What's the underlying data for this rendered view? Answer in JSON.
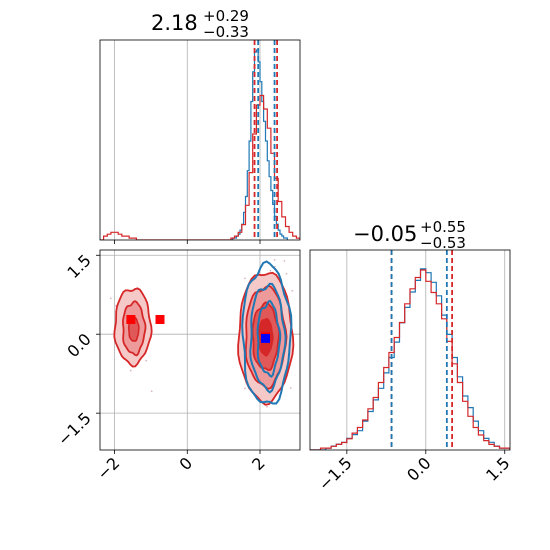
{
  "chart_data": {
    "type": "corner",
    "parameters": [
      {
        "title": {
          "value": "2.18",
          "upper": "+0.29",
          "lower": "−0.33"
        },
        "range": [
          -2.4,
          3.1
        ],
        "ticks": [
          -2,
          0,
          2
        ],
        "tick_labels": [
          "−2",
          "0",
          "2"
        ]
      },
      {
        "title": {
          "value": "−0.05",
          "upper": "+0.55",
          "lower": "−0.53"
        },
        "range": [
          -2.2,
          1.6
        ],
        "ticks": [
          -1.5,
          0.0,
          1.5
        ],
        "tick_labels": [
          "−1.5",
          "0.0",
          "1.5"
        ]
      }
    ],
    "series": [
      {
        "color": "#1f77b4",
        "quantiles_x": [
          1.95,
          2.4
        ],
        "quantiles_y": [
          -0.65,
          0.4
        ],
        "marker": {
          "x": 2.15,
          "y": -0.08,
          "color": "#0000ff"
        },
        "hist_x": {
          "edges_start": 1.2,
          "bin_width": 0.05,
          "counts": [
            0,
            1,
            1,
            2,
            3,
            5,
            8,
            14,
            22,
            35,
            50,
            70,
            85,
            95,
            96,
            90,
            80,
            70,
            60,
            50,
            40,
            32,
            25,
            18,
            12,
            8,
            5,
            3,
            2,
            1,
            1
          ]
        },
        "hist_y": {
          "edges_start": -2.2,
          "bin_width": 0.1,
          "counts": [
            0,
            0,
            0,
            1,
            2,
            3,
            4,
            6,
            8,
            10,
            15,
            20,
            26,
            32,
            40,
            48,
            56,
            66,
            74,
            82,
            88,
            94,
            92,
            87,
            80,
            70,
            60,
            48,
            38,
            28,
            22,
            15,
            10,
            6,
            4,
            2,
            1,
            1
          ]
        }
      },
      {
        "color": "#d62728",
        "quantiles_x": [
          1.85,
          2.47
        ],
        "quantiles_y": [
          -0.65,
          0.5
        ],
        "markers": [
          {
            "x": 2.15,
            "y": -0.05,
            "color": "#ff0000"
          },
          {
            "x": -1.55,
            "y": 0.28,
            "color": "#ff0000"
          },
          {
            "x": -0.75,
            "y": 0.28,
            "color": "#ff0000"
          }
        ],
        "hist_x": {
          "edges_start": -2.4,
          "bin_width": 0.1,
          "counts": [
            0,
            2,
            3,
            4,
            4,
            3,
            2,
            2,
            1,
            1,
            0,
            0,
            0,
            0,
            0,
            0,
            0,
            0,
            0,
            0,
            0,
            0,
            0,
            0,
            0,
            0,
            0,
            0,
            0,
            0,
            0,
            0,
            0,
            0,
            0,
            0,
            1,
            2,
            4,
            8,
            18,
            35,
            55,
            70,
            75,
            68,
            58,
            45,
            32,
            20,
            12,
            7,
            4,
            2,
            1
          ]
        },
        "hist_y": {
          "edges_start": -2.2,
          "bin_width": 0.1,
          "counts": [
            0,
            0,
            1,
            1,
            2,
            3,
            4,
            6,
            9,
            12,
            16,
            22,
            28,
            36,
            44,
            52,
            60,
            68,
            78,
            86,
            92,
            96,
            90,
            84,
            78,
            70,
            58,
            46,
            36,
            26,
            18,
            12,
            8,
            5,
            3,
            2,
            1,
            1
          ]
        }
      }
    ],
    "grid": true
  }
}
